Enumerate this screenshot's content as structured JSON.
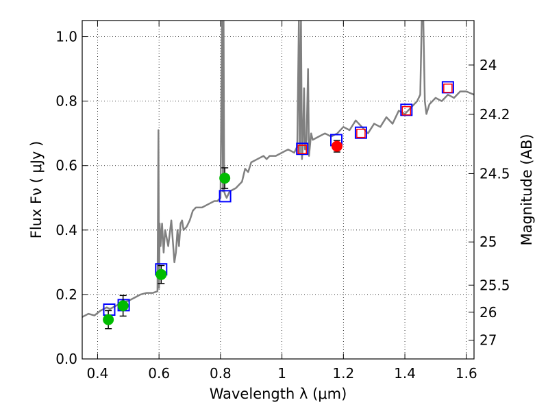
{
  "chart_data": {
    "type": "scatter",
    "title": "",
    "xlabel": "Wavelength  λ (μm)",
    "ylabel": "Flux  Fν  ( μJy )",
    "y2label": "Magnitude (AB)",
    "xlim": [
      0.35,
      1.625
    ],
    "ylim": [
      0.0,
      1.05
    ],
    "grid": true,
    "x_ticks": [
      0.4,
      0.6,
      0.8,
      1.0,
      1.2,
      1.4,
      1.6
    ],
    "x_tick_labels": [
      "0.4",
      "0.6",
      "0.8",
      "1",
      "1.2",
      "1.4",
      "1.6"
    ],
    "y_ticks": [
      0.0,
      0.2,
      0.4,
      0.6,
      0.8,
      1.0
    ],
    "y_tick_labels": [
      "0.0",
      "0.2",
      "0.4",
      "0.6",
      "0.8",
      "1.0"
    ],
    "y2_ticks": [
      {
        "label": "24",
        "flux": 0.912
      },
      {
        "label": "24.2",
        "flux": 0.759
      },
      {
        "label": "24.5",
        "flux": 0.575
      },
      {
        "label": "25",
        "flux": 0.363
      },
      {
        "label": "25.5",
        "flux": 0.229
      },
      {
        "label": "26",
        "flux": 0.145
      },
      {
        "label": "27",
        "flux": 0.058
      }
    ],
    "spectrum": {
      "name": "model spectrum",
      "color": "#808080",
      "x": [
        0.35,
        0.37,
        0.39,
        0.41,
        0.43,
        0.44,
        0.46,
        0.48,
        0.5,
        0.52,
        0.54,
        0.56,
        0.58,
        0.595,
        0.598,
        0.6,
        0.602,
        0.605,
        0.61,
        0.615,
        0.62,
        0.63,
        0.64,
        0.65,
        0.655,
        0.66,
        0.665,
        0.67,
        0.675,
        0.68,
        0.69,
        0.7,
        0.71,
        0.72,
        0.74,
        0.76,
        0.78,
        0.79,
        0.8,
        0.805,
        0.808,
        0.81,
        0.812,
        0.815,
        0.82,
        0.83,
        0.85,
        0.87,
        0.88,
        0.89,
        0.9,
        0.92,
        0.94,
        0.95,
        0.96,
        0.98,
        1.0,
        1.02,
        1.04,
        1.05,
        1.055,
        1.058,
        1.062,
        1.065,
        1.068,
        1.072,
        1.075,
        1.08,
        1.085,
        1.088,
        1.092,
        1.095,
        1.1,
        1.12,
        1.14,
        1.16,
        1.18,
        1.2,
        1.22,
        1.24,
        1.26,
        1.28,
        1.3,
        1.32,
        1.34,
        1.36,
        1.38,
        1.4,
        1.42,
        1.44,
        1.45,
        1.455,
        1.46,
        1.465,
        1.47,
        1.48,
        1.5,
        1.52,
        1.54,
        1.56,
        1.58,
        1.6,
        1.625
      ],
      "y": [
        0.13,
        0.14,
        0.135,
        0.15,
        0.16,
        0.155,
        0.165,
        0.175,
        0.18,
        0.19,
        0.2,
        0.205,
        0.205,
        0.21,
        0.71,
        0.22,
        0.42,
        0.35,
        0.42,
        0.33,
        0.4,
        0.35,
        0.43,
        0.3,
        0.33,
        0.4,
        0.35,
        0.42,
        0.43,
        0.4,
        0.41,
        0.43,
        0.46,
        0.47,
        0.47,
        0.48,
        0.49,
        0.49,
        0.5,
        1.05,
        0.52,
        1.05,
        0.52,
        0.51,
        0.5,
        0.52,
        0.53,
        0.55,
        0.59,
        0.58,
        0.61,
        0.62,
        0.63,
        0.62,
        0.63,
        0.63,
        0.64,
        0.65,
        0.64,
        0.66,
        1.05,
        0.64,
        1.05,
        0.62,
        0.66,
        0.84,
        0.65,
        0.68,
        0.9,
        0.63,
        0.67,
        0.7,
        0.68,
        0.69,
        0.7,
        0.69,
        0.7,
        0.72,
        0.71,
        0.74,
        0.72,
        0.7,
        0.73,
        0.72,
        0.75,
        0.73,
        0.77,
        0.76,
        0.78,
        0.8,
        0.82,
        1.05,
        1.05,
        0.8,
        0.76,
        0.79,
        0.81,
        0.8,
        0.82,
        0.81,
        0.83,
        0.83,
        0.82
      ]
    },
    "series": [
      {
        "name": "observed (green)",
        "color": "#00bb00",
        "marker": "circle",
        "x": [
          0.435,
          0.483,
          0.607,
          0.814
        ],
        "y": [
          0.122,
          0.165,
          0.262,
          0.561
        ],
        "yerr": [
          0.028,
          0.032,
          0.028,
          0.032
        ]
      },
      {
        "name": "observed (red)",
        "color": "#ff0000",
        "marker": "circle",
        "x": [
          1.179
        ],
        "y": [
          0.66
        ],
        "yerr": [
          0.018
        ]
      },
      {
        "name": "model photometry (blue)",
        "color": "#0000ff",
        "marker": "square",
        "x": [
          0.438,
          0.485,
          0.607,
          0.815,
          1.066,
          1.177,
          1.257,
          1.405,
          1.54
        ],
        "y": [
          0.153,
          0.167,
          0.278,
          0.505,
          0.652,
          0.679,
          0.702,
          0.773,
          0.843
        ]
      },
      {
        "name": "model photometry (red)",
        "color": "#ff0000",
        "marker": "square-small",
        "x": [
          1.066,
          1.257,
          1.405,
          1.54
        ],
        "y": [
          0.65,
          0.7,
          0.77,
          0.84
        ]
      }
    ]
  }
}
